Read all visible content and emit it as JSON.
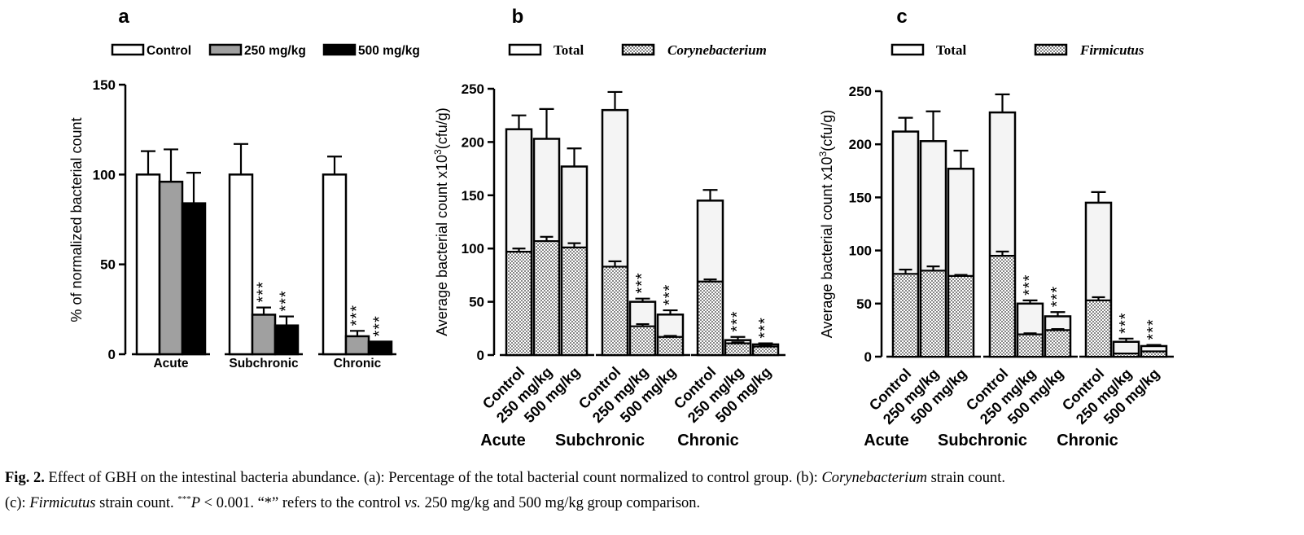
{
  "chart_data": [
    {
      "panel": "a",
      "type": "bar",
      "ylabel": "% of normalized bacterial count",
      "ylim": [
        0,
        150
      ],
      "yticks": [
        0,
        50,
        100,
        150
      ],
      "groups": [
        "Acute",
        "Subchronic",
        "Chronic"
      ],
      "legend": [
        "Control",
        "250 mg/kg",
        "500 mg/kg"
      ],
      "series": [
        {
          "name": "Control",
          "color": "#ffffff",
          "values": [
            100,
            100,
            100
          ],
          "errors": [
            13,
            17,
            10
          ]
        },
        {
          "name": "250 mg/kg",
          "color": "#a0a0a0",
          "values": [
            96,
            22,
            10
          ],
          "errors": [
            18,
            4,
            3
          ]
        },
        {
          "name": "500 mg/kg",
          "color": "#000000",
          "values": [
            84,
            16,
            7
          ],
          "errors": [
            17,
            5,
            0
          ]
        }
      ],
      "significance": [
        {
          "group": "Subchronic",
          "series": "250 mg/kg",
          "label": "***"
        },
        {
          "group": "Subchronic",
          "series": "500 mg/kg",
          "label": "***"
        },
        {
          "group": "Chronic",
          "series": "250 mg/kg",
          "label": "***"
        },
        {
          "group": "Chronic",
          "series": "500 mg/kg",
          "label": "***"
        }
      ]
    },
    {
      "panel": "b",
      "type": "bar",
      "ylabel": "Average bacterial count x10",
      "ylabel_sup": "3",
      "ylabel_unit": "(cfu/g)",
      "ylim": [
        0,
        250
      ],
      "yticks": [
        0,
        50,
        100,
        150,
        200,
        250
      ],
      "groups": [
        "Acute",
        "Subchronic",
        "Chronic"
      ],
      "categories": [
        "Control",
        "250 mg/kg",
        "500 mg/kg",
        "Control",
        "250 mg/kg",
        "500 mg/kg",
        "Control",
        "250 mg/kg",
        "500 mg/kg"
      ],
      "legend": [
        "Total",
        "Corynebacterium"
      ],
      "series": [
        {
          "name": "Total",
          "values": [
            212,
            203,
            177,
            230,
            50,
            38,
            145,
            14,
            10
          ],
          "errors": [
            13,
            28,
            17,
            17,
            3,
            4,
            10,
            3,
            1
          ]
        },
        {
          "name": "Corynebacterium",
          "values": [
            97,
            107,
            101,
            83,
            27,
            17,
            69,
            11,
            8
          ],
          "errors": [
            3,
            4,
            4,
            5,
            2,
            1,
            2,
            1,
            1
          ]
        }
      ],
      "significance": [
        {
          "category_index": 4,
          "label": "***"
        },
        {
          "category_index": 5,
          "label": "***"
        },
        {
          "category_index": 7,
          "label": "***"
        },
        {
          "category_index": 8,
          "label": "***"
        }
      ]
    },
    {
      "panel": "c",
      "type": "bar",
      "ylabel": "Average bacterial count x10",
      "ylabel_sup": "3",
      "ylabel_unit": "(cfu/g)",
      "ylim": [
        0,
        250
      ],
      "yticks": [
        0,
        50,
        100,
        150,
        200,
        250
      ],
      "groups": [
        "Acute",
        "Subchronic",
        "Chronic"
      ],
      "categories": [
        "Control",
        "250 mg/kg",
        "500 mg/kg",
        "Control",
        "250 mg/kg",
        "500 mg/kg",
        "Control",
        "250 mg/kg",
        "500 mg/kg"
      ],
      "legend": [
        "Total",
        "Firmicutus"
      ],
      "series": [
        {
          "name": "Total",
          "values": [
            212,
            203,
            177,
            230,
            50,
            38,
            145,
            14,
            10
          ],
          "errors": [
            13,
            28,
            17,
            17,
            3,
            4,
            10,
            3,
            1
          ]
        },
        {
          "name": "Firmicutus",
          "values": [
            78,
            81,
            76,
            95,
            21,
            25,
            53,
            3,
            5
          ],
          "errors": [
            4,
            4,
            1,
            4,
            1,
            1,
            3,
            0,
            0
          ]
        }
      ],
      "significance": [
        {
          "category_index": 4,
          "label": "***"
        },
        {
          "category_index": 5,
          "label": "***"
        },
        {
          "category_index": 7,
          "label": "***"
        },
        {
          "category_index": 8,
          "label": "***"
        }
      ]
    }
  ],
  "caption": {
    "label": "Fig. 2.",
    "line1_a": "Effect of GBH on the intestinal bacteria abundance. (a): Percentage of the total bacterial count normalized to control group. (b): ",
    "line1_b_italic": "Corynebacterium",
    "line1_c": " strain count.",
    "line2_a": "(c): ",
    "line2_b_italic": "Firmicutus",
    "line2_c": " strain count. ",
    "line2_stars": "***",
    "line2_p": "P",
    "line2_d": " < 0.001. “*” refers to the control ",
    "line2_vs": "vs.",
    "line2_e": " 250 mg/kg and 500 mg/kg group comparison."
  }
}
